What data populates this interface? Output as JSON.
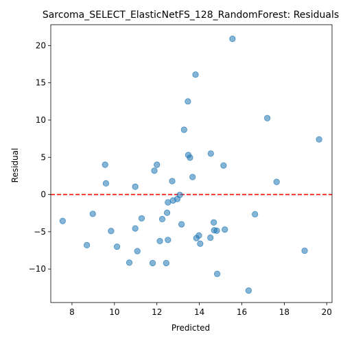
{
  "chart_data": {
    "type": "scatter",
    "title": "Sarcoma_SELECT_ElasticNetFS_128_RandomForest: Residuals",
    "xlabel": "Predicted",
    "ylabel": "Residual",
    "xlim": [
      7.0,
      20.25
    ],
    "ylim": [
      -14.5,
      22.8
    ],
    "xticks": [
      8,
      10,
      12,
      14,
      16,
      18,
      20
    ],
    "yticks": [
      -10,
      -5,
      0,
      5,
      10,
      15,
      20
    ],
    "ytick_labels": [
      "−10",
      "−5",
      "0",
      "5",
      "10",
      "15",
      "20"
    ],
    "reference_line": {
      "y": 0,
      "style": "dashed",
      "color": "#ff0000"
    },
    "marker_color": "#1f77b4",
    "marker_alpha": 0.55,
    "points": [
      {
        "x": 7.56,
        "y": -3.55
      },
      {
        "x": 8.7,
        "y": -6.8
      },
      {
        "x": 8.98,
        "y": -2.6
      },
      {
        "x": 9.56,
        "y": 4.0
      },
      {
        "x": 9.6,
        "y": 1.5
      },
      {
        "x": 9.84,
        "y": -4.9
      },
      {
        "x": 10.12,
        "y": -7.0
      },
      {
        "x": 10.7,
        "y": -9.15
      },
      {
        "x": 10.98,
        "y": -4.55
      },
      {
        "x": 10.98,
        "y": 1.05
      },
      {
        "x": 11.08,
        "y": -7.6
      },
      {
        "x": 11.28,
        "y": -3.2
      },
      {
        "x": 11.8,
        "y": -9.2
      },
      {
        "x": 11.88,
        "y": 3.2
      },
      {
        "x": 12.0,
        "y": 4.0
      },
      {
        "x": 12.14,
        "y": -6.25
      },
      {
        "x": 12.25,
        "y": -3.3
      },
      {
        "x": 12.44,
        "y": -9.2
      },
      {
        "x": 12.48,
        "y": -2.45
      },
      {
        "x": 12.52,
        "y": -1.05
      },
      {
        "x": 12.52,
        "y": -6.1
      },
      {
        "x": 12.72,
        "y": 1.8
      },
      {
        "x": 12.76,
        "y": -0.8
      },
      {
        "x": 12.96,
        "y": -0.6
      },
      {
        "x": 13.08,
        "y": -0.05
      },
      {
        "x": 13.16,
        "y": -4.0
      },
      {
        "x": 13.28,
        "y": 8.7
      },
      {
        "x": 13.46,
        "y": 12.5
      },
      {
        "x": 13.48,
        "y": 5.3
      },
      {
        "x": 13.56,
        "y": 4.95
      },
      {
        "x": 13.68,
        "y": 2.35
      },
      {
        "x": 13.82,
        "y": 16.1
      },
      {
        "x": 13.86,
        "y": -5.85
      },
      {
        "x": 13.98,
        "y": -5.5
      },
      {
        "x": 14.04,
        "y": -6.6
      },
      {
        "x": 14.52,
        "y": -5.8
      },
      {
        "x": 14.54,
        "y": 5.5
      },
      {
        "x": 14.68,
        "y": -3.75
      },
      {
        "x": 14.7,
        "y": -4.8
      },
      {
        "x": 14.82,
        "y": -4.85
      },
      {
        "x": 14.84,
        "y": -10.65
      },
      {
        "x": 15.14,
        "y": 3.9
      },
      {
        "x": 15.2,
        "y": -4.7
      },
      {
        "x": 15.56,
        "y": 20.9
      },
      {
        "x": 16.32,
        "y": -12.9
      },
      {
        "x": 16.62,
        "y": -2.65
      },
      {
        "x": 17.2,
        "y": 10.25
      },
      {
        "x": 17.64,
        "y": 1.7
      },
      {
        "x": 18.96,
        "y": -7.55
      },
      {
        "x": 19.64,
        "y": 7.4
      }
    ]
  }
}
